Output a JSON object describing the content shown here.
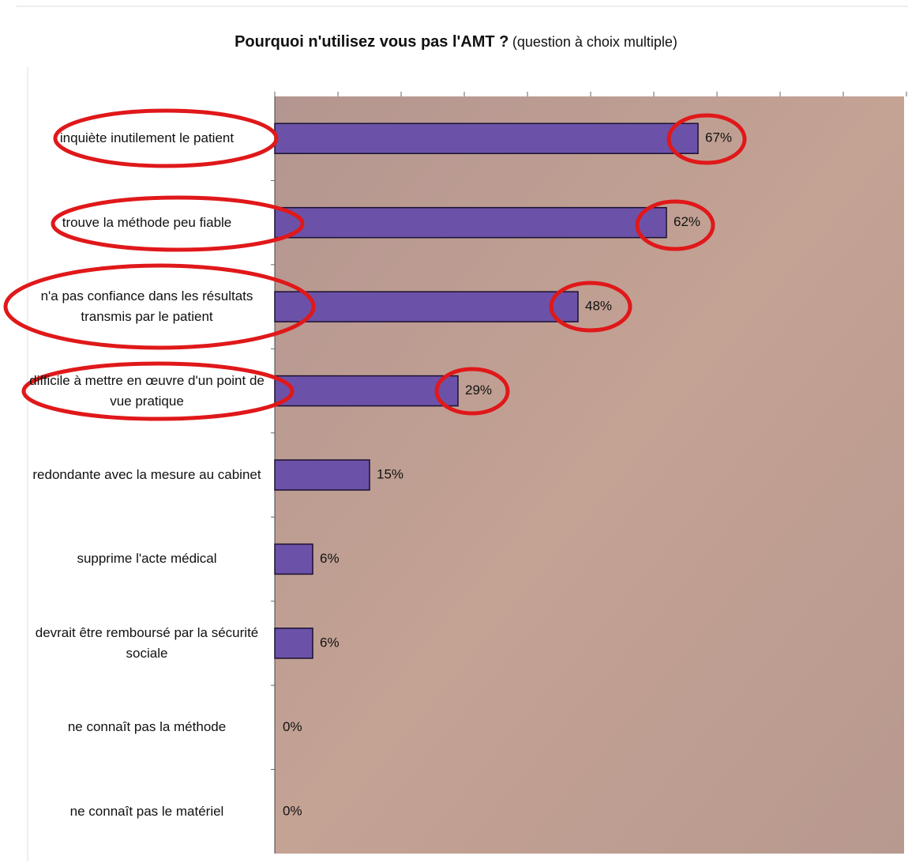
{
  "chart_data": {
    "type": "barh",
    "title": "Pourquoi n'utilisez vous pas l'AMT ?",
    "subtitle": "(question à choix multiple)",
    "categories": [
      "inquiète inutilement le patient",
      "trouve la méthode peu fiable",
      "n'a pas confiance dans les résultats transmis par le patient",
      "difficile à mettre en œuvre d'un point de vue pratique",
      "redondante avec la mesure au cabinet",
      "supprime l'acte médical",
      "devrait être remboursé par la sécurité sociale",
      "ne connaît pas la méthode",
      "ne connaît pas le matériel"
    ],
    "values": [
      67,
      62,
      48,
      29,
      15,
      6,
      6,
      0,
      0
    ],
    "value_labels": [
      "67%",
      "62%",
      "48%",
      "29%",
      "15%",
      "6%",
      "6%",
      "0%",
      "0%"
    ],
    "color": "#6b52a8",
    "xlim": [
      0,
      100
    ],
    "xticks": [
      0,
      10,
      20,
      30,
      40,
      50,
      60,
      70,
      80,
      90,
      100
    ]
  }
}
